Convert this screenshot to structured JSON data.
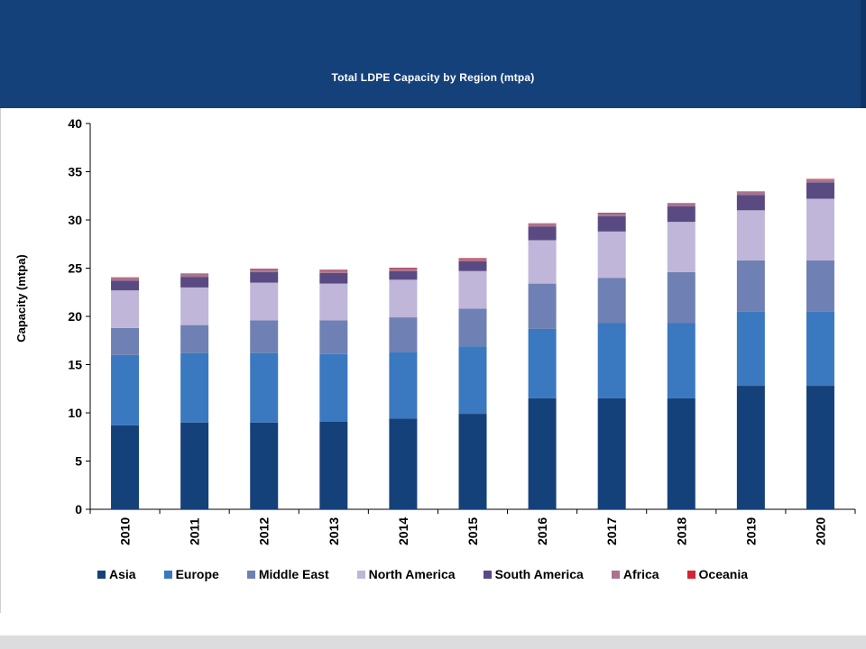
{
  "page": {
    "banner_color": "#15417a"
  },
  "chart_data": {
    "type": "bar",
    "stacked": true,
    "title": "Total LDPE Capacity by Region (mtpa)",
    "xlabel": "",
    "ylabel": "Capacity (mtpa)",
    "ylim": [
      0,
      40
    ],
    "yticks": [
      "0",
      "5",
      "10",
      "15",
      "20",
      "25",
      "30",
      "35",
      "40"
    ],
    "categories": [
      "2010",
      "2011",
      "2012",
      "2013",
      "2014",
      "2015",
      "2016",
      "2017",
      "2018",
      "2019",
      "2020"
    ],
    "series": [
      {
        "name": "Asia",
        "color": "#15417a",
        "values": [
          8.7,
          9.0,
          9.0,
          9.1,
          9.4,
          9.9,
          11.5,
          11.5,
          11.5,
          12.8,
          12.8
        ]
      },
      {
        "name": "Europe",
        "color": "#3a78c0",
        "values": [
          7.3,
          7.2,
          7.2,
          7.0,
          6.9,
          7.0,
          7.2,
          7.8,
          7.8,
          7.7,
          7.7
        ]
      },
      {
        "name": "Middle East",
        "color": "#6f80b4",
        "values": [
          2.8,
          2.9,
          3.4,
          3.5,
          3.6,
          3.9,
          4.7,
          4.7,
          5.3,
          5.3,
          5.3
        ]
      },
      {
        "name": "North America",
        "color": "#bfb6d9",
        "values": [
          3.9,
          3.9,
          3.9,
          3.8,
          3.9,
          3.9,
          4.5,
          4.8,
          5.2,
          5.2,
          6.4
        ]
      },
      {
        "name": "South America",
        "color": "#5a4a82",
        "values": [
          1.0,
          1.1,
          1.1,
          1.1,
          0.9,
          1.0,
          1.4,
          1.6,
          1.6,
          1.6,
          1.7
        ]
      },
      {
        "name": "Africa",
        "color": "#a8738f",
        "values": [
          0.3,
          0.3,
          0.3,
          0.3,
          0.3,
          0.3,
          0.3,
          0.3,
          0.3,
          0.3,
          0.3
        ]
      },
      {
        "name": "Oceania",
        "color": "#d62231",
        "values": [
          0.05,
          0.05,
          0.05,
          0.05,
          0.05,
          0.05,
          0.05,
          0.05,
          0.05,
          0.05,
          0.05
        ]
      }
    ],
    "legend_position": "bottom"
  }
}
